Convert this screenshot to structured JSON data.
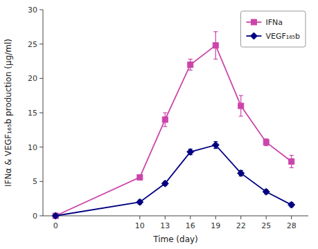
{
  "chart_data": {
    "type": "line",
    "x_label": "Time (day)",
    "y_label": "IFNα & VEGF₁₆₅b production (μg/ml)",
    "x": [
      0,
      10,
      13,
      16,
      19,
      22,
      25,
      28
    ],
    "series": [
      {
        "name": "IFNa",
        "color": "#cc44aa",
        "marker": "square",
        "values": [
          0.0,
          5.6,
          14.0,
          22.0,
          24.8,
          16.0,
          10.7,
          7.9
        ],
        "errors": [
          0.0,
          0.3,
          1.0,
          0.8,
          2.0,
          1.5,
          0.5,
          0.9
        ]
      },
      {
        "name": "VEGF₁₆₅b",
        "color": "#000080",
        "marker": "diamond",
        "values": [
          0.0,
          2.0,
          4.7,
          9.3,
          10.3,
          6.2,
          3.5,
          1.6
        ],
        "errors": [
          0.0,
          0.3,
          0.3,
          0.4,
          0.5,
          0.4,
          0.3,
          0.3
        ]
      }
    ],
    "xlim": [
      -1.5,
      30
    ],
    "xticks": [
      0,
      10,
      13,
      16,
      19,
      22,
      25,
      28
    ],
    "ylim": [
      0,
      30
    ],
    "yticks": [
      0,
      5,
      10,
      15,
      20,
      25,
      30
    ],
    "grid": false,
    "legend": "upper right"
  }
}
